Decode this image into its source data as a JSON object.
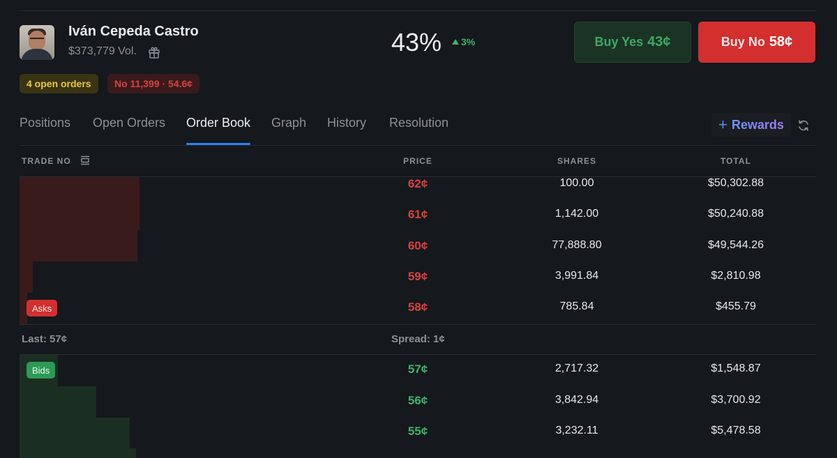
{
  "market": {
    "name": "Iván Cepeda Castro",
    "volume": "$373,779 Vol.",
    "probability": "43%",
    "change": "3%",
    "buy_yes_label": "Buy Yes",
    "buy_yes_price": "43¢",
    "buy_no_label": "Buy No",
    "buy_no_price": "58¢",
    "open_orders": "4 open orders",
    "position": "No 11,399 · 54.6¢"
  },
  "tabs": [
    {
      "label": "Positions",
      "active": false
    },
    {
      "label": "Open Orders",
      "active": false
    },
    {
      "label": "Order Book",
      "active": true
    },
    {
      "label": "Graph",
      "active": false
    },
    {
      "label": "History",
      "active": false
    },
    {
      "label": "Resolution",
      "active": false
    }
  ],
  "rewards_label": "Rewards",
  "table": {
    "headers": {
      "trade": "TRADE NO",
      "price": "PRICE",
      "shares": "SHARES",
      "total": "TOTAL"
    },
    "asks": [
      {
        "price": "62¢",
        "shares": "100.00",
        "total": "$50,302.88"
      },
      {
        "price": "61¢",
        "shares": "1,142.00",
        "total": "$50,240.88"
      },
      {
        "price": "60¢",
        "shares": "77,888.80",
        "total": "$49,544.26"
      },
      {
        "price": "59¢",
        "shares": "3,991.84",
        "total": "$2,810.98"
      },
      {
        "price": "58¢",
        "shares": "785.84",
        "total": "$455.79"
      }
    ],
    "asks_tag": "Asks",
    "last": "Last: 57¢",
    "spread": "Spread: 1¢",
    "bids_tag": "Bids",
    "bids": [
      {
        "price": "57¢",
        "shares": "2,717.32",
        "total": "$1,548.87"
      },
      {
        "price": "56¢",
        "shares": "3,842.94",
        "total": "$3,700.92"
      },
      {
        "price": "55¢",
        "shares": "3,232.11",
        "total": "$5,478.58"
      }
    ]
  },
  "colors": {
    "ask": "#d8413f",
    "bid": "#3db36a",
    "accent": "#2f7df6"
  }
}
